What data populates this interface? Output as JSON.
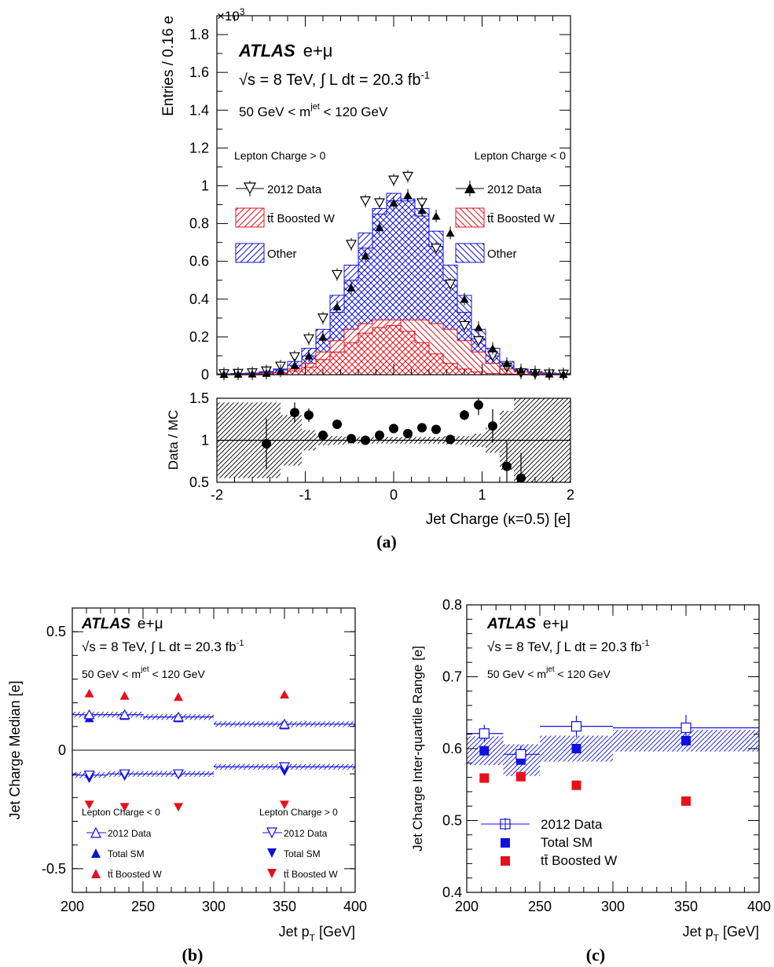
{
  "chart_data": [
    {
      "id": "a",
      "panel_label": "(a)",
      "type": "histogram",
      "experiment": "ATLAS",
      "channel": "e+μ",
      "energy_text": "√s = 8 TeV, ∫ L dt = 20.3 fb",
      "lumi_sup": "-1",
      "mass_cut": {
        "pre": "50 GeV < m",
        "sup": "jet",
        "post": " < 120 GeV"
      },
      "ylabel": "Entries / 0.16 e",
      "y_exponent": "×10",
      "y_exponent_sup": "3",
      "ylim": [
        0,
        1.9
      ],
      "yticks": [
        "0",
        "0.2",
        "0.4",
        "0.6",
        "0.8",
        "1",
        "1.2",
        "1.4",
        "1.6",
        "1.8"
      ],
      "xlim": [
        -2,
        2
      ],
      "legend_left": {
        "heading": "Lepton Charge > 0",
        "entries": [
          "2012 Data",
          "tt̄ Boosted W",
          "Other"
        ]
      },
      "legend_right": {
        "heading": "Lepton Charge < 0",
        "entries": [
          "2012 Data",
          "tt̄ Boosted W",
          "Other"
        ]
      },
      "bin_edges": [
        -2.0,
        -1.84,
        -1.68,
        -1.52,
        -1.36,
        -1.2,
        -1.04,
        -0.88,
        -0.72,
        -0.56,
        -0.4,
        -0.24,
        -0.08,
        0.08,
        0.24,
        0.4,
        0.56,
        0.72,
        0.88,
        1.04,
        1.2,
        1.36,
        1.52,
        1.68,
        1.84,
        2.0
      ],
      "pos_lepton": {
        "stack_total": [
          0.004,
          0.006,
          0.009,
          0.016,
          0.03,
          0.07,
          0.14,
          0.24,
          0.42,
          0.58,
          0.75,
          0.88,
          0.96,
          0.92,
          0.84,
          0.68,
          0.5,
          0.33,
          0.19,
          0.1,
          0.05,
          0.025,
          0.012,
          0.008,
          0.005
        ],
        "boosted_w": [
          0.001,
          0.002,
          0.003,
          0.005,
          0.01,
          0.03,
          0.06,
          0.12,
          0.18,
          0.24,
          0.27,
          0.29,
          0.29,
          0.23,
          0.17,
          0.11,
          0.06,
          0.03,
          0.015,
          0.007,
          0.004,
          0.002,
          0.001,
          0.001,
          0.001
        ],
        "data": [
          0.005,
          0.007,
          0.01,
          0.02,
          0.045,
          0.095,
          0.19,
          0.3,
          0.53,
          0.69,
          0.92,
          0.91,
          1.03,
          1.05,
          0.91,
          0.67,
          0.48,
          0.26,
          0.18,
          0.1,
          0.04,
          0.01,
          0.006,
          0.004,
          0.003
        ]
      },
      "neg_lepton": {
        "stack_total": [
          0.004,
          0.006,
          0.008,
          0.012,
          0.025,
          0.05,
          0.1,
          0.19,
          0.33,
          0.5,
          0.67,
          0.85,
          0.92,
          0.93,
          0.88,
          0.76,
          0.58,
          0.42,
          0.24,
          0.14,
          0.07,
          0.03,
          0.016,
          0.009,
          0.005
        ],
        "boosted_w": [
          0.001,
          0.002,
          0.003,
          0.005,
          0.01,
          0.02,
          0.04,
          0.08,
          0.12,
          0.17,
          0.22,
          0.25,
          0.26,
          0.29,
          0.29,
          0.27,
          0.24,
          0.18,
          0.12,
          0.06,
          0.03,
          0.015,
          0.006,
          0.003,
          0.002
        ],
        "data": [
          0.003,
          0.004,
          0.005,
          0.008,
          0.02,
          0.05,
          0.1,
          0.2,
          0.36,
          0.46,
          0.63,
          0.78,
          0.91,
          0.95,
          0.87,
          0.84,
          0.75,
          0.4,
          0.25,
          0.14,
          0.06,
          0.025,
          0.015,
          0.005,
          0.003
        ]
      },
      "ratio": {
        "ylabel": "Data / MC",
        "xlabel": "Jet Charge (κ=0.5) [e]",
        "ylim": [
          0.5,
          1.5
        ],
        "yticks": [
          "0.5",
          "1",
          "1.5"
        ],
        "xticks": [
          "-2",
          "-1",
          "0",
          "1",
          "2"
        ],
        "x": [
          -1.44,
          -1.12,
          -0.96,
          -0.8,
          -0.64,
          -0.48,
          -0.32,
          -0.16,
          0.0,
          0.16,
          0.32,
          0.48,
          0.64,
          0.8,
          0.96,
          1.12,
          1.28,
          1.44
        ],
        "y": [
          0.96,
          1.33,
          1.3,
          1.06,
          1.19,
          1.02,
          1.0,
          1.06,
          1.14,
          1.08,
          1.15,
          1.13,
          1.01,
          1.3,
          1.42,
          1.17,
          0.69,
          0.55
        ],
        "err": [
          0.3,
          0.12,
          0.08,
          0.04,
          0.03,
          0.02,
          0.02,
          0.02,
          0.02,
          0.02,
          0.02,
          0.02,
          0.03,
          0.06,
          0.12,
          0.2,
          0.3,
          0.3
        ],
        "band_halfwidth": [
          0.45,
          0.3,
          0.12,
          0.06,
          0.05,
          0.04,
          0.04,
          0.04,
          0.04,
          0.04,
          0.04,
          0.04,
          0.05,
          0.05,
          0.08,
          0.15,
          0.35,
          0.5
        ]
      }
    },
    {
      "id": "b",
      "panel_label": "(b)",
      "type": "scatter",
      "experiment": "ATLAS",
      "channel": "e+μ",
      "energy_text": "√s = 8 TeV, ∫ L dt = 20.3 fb",
      "lumi_sup": "-1",
      "mass_cut": {
        "pre": "50 GeV < m",
        "sup": "jet",
        "post": " < 120 GeV"
      },
      "ylabel": "Jet Charge Median [e]",
      "xlabel_main": "Jet p",
      "xlabel_sub": "T",
      "xlabel_unit": " [GeV]",
      "xlim": [
        200,
        400
      ],
      "ylim": [
        -0.6,
        0.6
      ],
      "xticks": [
        "200",
        "250",
        "300",
        "350",
        "400"
      ],
      "yticks": [
        "-0.5",
        "0",
        "0.5"
      ],
      "bins": [
        [
          200,
          225
        ],
        [
          225,
          250
        ],
        [
          250,
          300
        ],
        [
          300,
          400
        ]
      ],
      "x": [
        212,
        237,
        275,
        350
      ],
      "neg_lepton": {
        "heading": "Lepton Charge < 0",
        "legend": [
          "2012 Data",
          "Total SM",
          "tt̄ Boosted W"
        ],
        "data": [
          0.15,
          0.15,
          0.14,
          0.11
        ],
        "total_sm": [
          0.135,
          0.145,
          0.135,
          0.105
        ],
        "boosted_w": [
          0.24,
          0.23,
          0.225,
          0.235
        ]
      },
      "pos_lepton": {
        "heading": "Lepton Charge > 0",
        "legend": [
          "2012 Data",
          "Total SM",
          "tt̄ Boosted W"
        ],
        "data": [
          -0.105,
          -0.1,
          -0.1,
          -0.07
        ],
        "total_sm": [
          -0.12,
          -0.11,
          -0.105,
          -0.09
        ],
        "boosted_w": [
          -0.23,
          -0.24,
          -0.24,
          -0.23
        ]
      }
    },
    {
      "id": "c",
      "panel_label": "(c)",
      "type": "scatter",
      "experiment": "ATLAS",
      "channel": "e+μ",
      "energy_text": "√s = 8 TeV, ∫ L dt = 20.3 fb",
      "lumi_sup": "-1",
      "mass_cut": {
        "pre": "50 GeV < m",
        "sup": "jet",
        "post": " < 120 GeV"
      },
      "ylabel": "Jet Charge Inter-quartile Range [e]",
      "xlabel_main": "Jet p",
      "xlabel_sub": "T",
      "xlabel_unit": " [GeV]",
      "xlim": [
        200,
        400
      ],
      "ylim": [
        0.4,
        0.8
      ],
      "xticks": [
        "200",
        "250",
        "300",
        "350",
        "400"
      ],
      "yticks": [
        "0.4",
        "0.5",
        "0.6",
        "0.7",
        "0.8"
      ],
      "bins": [
        [
          200,
          225
        ],
        [
          225,
          250
        ],
        [
          250,
          300
        ],
        [
          300,
          400
        ]
      ],
      "x": [
        212,
        237,
        275,
        350
      ],
      "legend": [
        "2012 Data",
        "Total SM",
        "tt̄ Boosted W"
      ],
      "data": [
        0.621,
        0.592,
        0.631,
        0.629
      ],
      "data_err": [
        0.012,
        0.012,
        0.015,
        0.018
      ],
      "total_sm": [
        0.597,
        0.584,
        0.6,
        0.611
      ],
      "band_halfwidth": [
        0.02,
        0.022,
        0.018,
        0.015
      ],
      "boosted_w": [
        0.559,
        0.561,
        0.549,
        0.527
      ]
    }
  ],
  "colors": {
    "red": "#e8101a",
    "blue": "#1010e0",
    "black": "#000000"
  }
}
